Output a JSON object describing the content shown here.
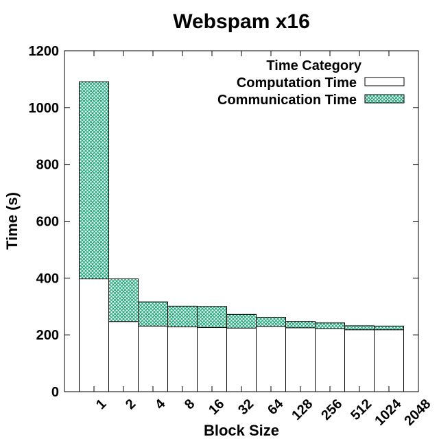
{
  "chart_data": {
    "type": "bar",
    "stacked": true,
    "title": "Webspam x16",
    "xlabel": "Block Size",
    "ylabel": "Time (s)",
    "ylim": [
      0,
      1200
    ],
    "yticks": [
      0,
      200,
      400,
      600,
      800,
      1000,
      1200
    ],
    "categories": [
      "1",
      "2",
      "4",
      "8",
      "16",
      "32",
      "64",
      "128",
      "256",
      "512",
      "1024",
      "2048"
    ],
    "series": [
      {
        "name": "Computation Time",
        "values": [
          397,
          247,
          231,
          228,
          226,
          224,
          230,
          225,
          222,
          218,
          218,
          null
        ],
        "fill": "#ffffff"
      },
      {
        "name": "Communication Time",
        "values": [
          694,
          150,
          85,
          73,
          74,
          48,
          32,
          22,
          20,
          14,
          13,
          null
        ],
        "fill": "#1aaa7a"
      }
    ],
    "legend": {
      "title": "Time Category",
      "placement": "top-right"
    },
    "grid": false
  }
}
